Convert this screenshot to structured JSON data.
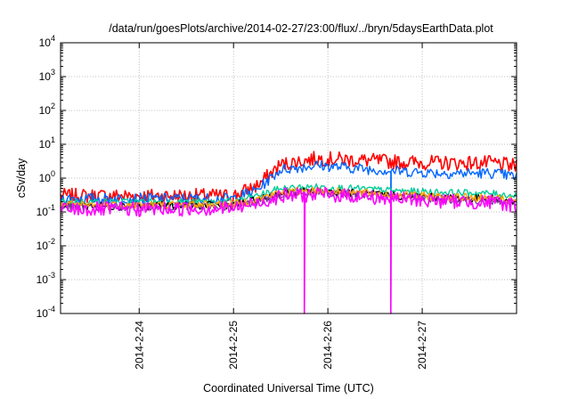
{
  "chart_data": {
    "type": "line",
    "title": "/data/run/goesPlots/archive/2014-02-27/23:00/flux/../bryn/5daysEarthData.plot",
    "xlabel": "Coordinated Universal Time (UTC)",
    "ylabel": "cSv/day",
    "scale": {
      "x": "time",
      "y": "log"
    },
    "xlim": [
      "2014-02-23 04:00",
      "2014-02-28 00:00"
    ],
    "ylim": [
      0.0001,
      10000
    ],
    "grid": true,
    "legend": "none",
    "x_ticks": [
      "2014-2-24",
      "2014-2-25",
      "2014-2-26",
      "2014-2-27"
    ],
    "y_ticks": [
      {
        "base": "10",
        "exp": "-4"
      },
      {
        "base": "10",
        "exp": "-3"
      },
      {
        "base": "10",
        "exp": "-2"
      },
      {
        "base": "10",
        "exp": "-1"
      },
      {
        "base": "10",
        "exp": "0"
      },
      {
        "base": "10",
        "exp": "1"
      },
      {
        "base": "10",
        "exp": "2"
      },
      {
        "base": "10",
        "exp": "3"
      },
      {
        "base": "10",
        "exp": "4"
      }
    ],
    "x": [
      "2014-02-23 04:00",
      "2014-02-24 00:00",
      "2014-02-25 00:00",
      "2014-02-25 06:00",
      "2014-02-25 12:00",
      "2014-02-25 21:00",
      "2014-02-26 06:00",
      "2014-02-26 18:00",
      "2014-02-27 06:00",
      "2014-02-27 18:00",
      "2014-02-28 00:00"
    ],
    "series": [
      {
        "color": "#ff0000",
        "values": [
          0.3,
          0.3,
          0.3,
          0.6,
          2.5,
          3.8,
          3.5,
          3.0,
          2.8,
          2.8,
          2.2
        ]
      },
      {
        "color": "#0066ff",
        "values": [
          0.25,
          0.25,
          0.25,
          0.45,
          1.8,
          2.4,
          2.0,
          1.6,
          1.4,
          1.4,
          1.1
        ]
      },
      {
        "color": "#00cc99",
        "values": [
          0.2,
          0.2,
          0.2,
          0.3,
          0.5,
          0.55,
          0.5,
          0.42,
          0.38,
          0.35,
          0.3
        ]
      },
      {
        "color": "#000000",
        "values": [
          0.15,
          0.15,
          0.16,
          0.22,
          0.36,
          0.42,
          0.36,
          0.3,
          0.26,
          0.24,
          0.2
        ]
      },
      {
        "color": "#7f3f9f",
        "values": [
          0.14,
          0.14,
          0.15,
          0.2,
          0.33,
          0.38,
          0.33,
          0.28,
          0.24,
          0.22,
          0.18
        ]
      },
      {
        "color": "#ffa500",
        "values": [
          0.16,
          0.16,
          0.17,
          0.24,
          0.38,
          0.44,
          0.38,
          0.32,
          0.28,
          0.25,
          0.21
        ]
      },
      {
        "color": "#ff00ff",
        "values": [
          0.12,
          0.12,
          0.13,
          0.18,
          0.3,
          0.33,
          0.3,
          0.24,
          0.21,
          0.19,
          0.16
        ]
      }
    ],
    "dropouts": [
      {
        "x": "2014-02-25 18:00",
        "series": [
          6
        ],
        "to": 0.0001
      },
      {
        "x": "2014-02-26 16:00",
        "series": [
          1,
          6
        ],
        "to": 0.0001
      }
    ]
  }
}
